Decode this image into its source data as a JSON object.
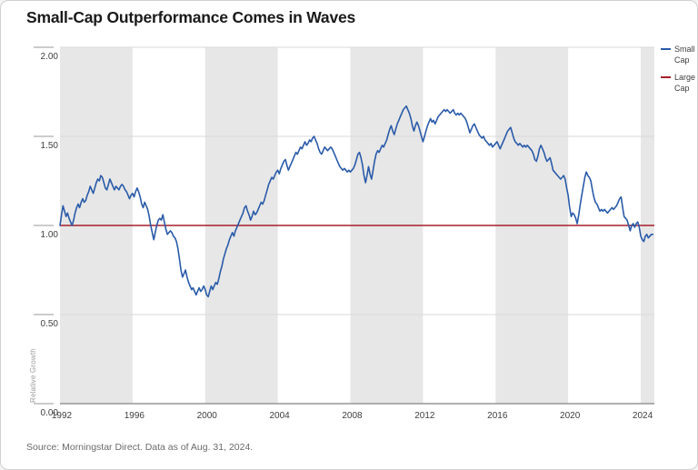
{
  "title": "Small-Cap Outperformance Comes in Waves",
  "source": "Source: Morningstar Direct. Data as of Aug. 31, 2024.",
  "ylabel": "Relative Growth",
  "legend": [
    {
      "label": "Small Cap",
      "color": "#2a5ba9"
    },
    {
      "label": "Large Cap",
      "color": "#a61e2b"
    }
  ],
  "colors": {
    "band": "#e7e7e7",
    "grid": "#d8d8d8",
    "axis": "#959595",
    "tick": "#999999",
    "tick_text": "#404040",
    "small_cap": "#2a5ba9",
    "large_cap": "#a61e2b"
  },
  "chart_data": {
    "type": "line",
    "title": "Small-Cap Outperformance Comes in Waves",
    "xlabel": "",
    "ylabel": "Relative Growth",
    "xlim": [
      1992,
      2024.75
    ],
    "ylim": [
      0,
      2
    ],
    "grid": "horizontal",
    "legend_position": "top-right",
    "yticks": [
      {
        "value": 0.0,
        "label": "0.00"
      },
      {
        "value": 0.5,
        "label": "0.50"
      },
      {
        "value": 1.0,
        "label": "1.00"
      },
      {
        "value": 1.5,
        "label": "1.50"
      },
      {
        "value": 2.0,
        "label": "2.00"
      }
    ],
    "xticks": [
      {
        "value": 1992,
        "label": "1992"
      },
      {
        "value": 1996,
        "label": "1996"
      },
      {
        "value": 2000,
        "label": "2000"
      },
      {
        "value": 2004,
        "label": "2004"
      },
      {
        "value": 2008,
        "label": "2008"
      },
      {
        "value": 2012,
        "label": "2012"
      },
      {
        "value": 2016,
        "label": "2016"
      },
      {
        "value": 2020,
        "label": "2020"
      },
      {
        "value": 2024,
        "label": "2024"
      }
    ],
    "shaded_bands_years": [
      [
        1992,
        1996
      ],
      [
        2000,
        2004
      ],
      [
        2008,
        2012
      ],
      [
        2016,
        2020
      ],
      [
        2024,
        2024.75
      ]
    ],
    "series": [
      {
        "name": "Small Cap",
        "color": "#2a5ba9",
        "x_start": 1992,
        "points_per_year": 12,
        "values": [
          1.0,
          1.06,
          1.11,
          1.08,
          1.05,
          1.07,
          1.04,
          1.02,
          1.0,
          1.03,
          1.07,
          1.1,
          1.12,
          1.1,
          1.13,
          1.15,
          1.13,
          1.14,
          1.17,
          1.19,
          1.22,
          1.2,
          1.18,
          1.21,
          1.24,
          1.26,
          1.25,
          1.28,
          1.27,
          1.24,
          1.21,
          1.2,
          1.23,
          1.26,
          1.24,
          1.22,
          1.2,
          1.22,
          1.21,
          1.2,
          1.22,
          1.23,
          1.22,
          1.2,
          1.19,
          1.17,
          1.15,
          1.17,
          1.18,
          1.16,
          1.19,
          1.21,
          1.19,
          1.16,
          1.12,
          1.1,
          1.13,
          1.11,
          1.09,
          1.05,
          1.0,
          0.96,
          0.92,
          0.96,
          1.0,
          1.03,
          1.04,
          1.03,
          1.06,
          1.02,
          0.98,
          0.95,
          0.96,
          0.97,
          0.96,
          0.94,
          0.93,
          0.91,
          0.87,
          0.81,
          0.75,
          0.71,
          0.73,
          0.75,
          0.71,
          0.68,
          0.66,
          0.64,
          0.65,
          0.63,
          0.61,
          0.63,
          0.65,
          0.63,
          0.64,
          0.66,
          0.64,
          0.61,
          0.6,
          0.63,
          0.66,
          0.64,
          0.66,
          0.68,
          0.67,
          0.7,
          0.74,
          0.77,
          0.81,
          0.84,
          0.87,
          0.89,
          0.92,
          0.94,
          0.96,
          0.94,
          0.97,
          0.99,
          1.01,
          1.03,
          1.05,
          1.07,
          1.1,
          1.11,
          1.08,
          1.06,
          1.03,
          1.05,
          1.08,
          1.06,
          1.07,
          1.09,
          1.11,
          1.13,
          1.12,
          1.14,
          1.17,
          1.2,
          1.23,
          1.25,
          1.27,
          1.26,
          1.28,
          1.3,
          1.31,
          1.29,
          1.32,
          1.34,
          1.36,
          1.37,
          1.34,
          1.31,
          1.33,
          1.35,
          1.37,
          1.39,
          1.41,
          1.4,
          1.42,
          1.44,
          1.43,
          1.45,
          1.47,
          1.45,
          1.46,
          1.48,
          1.47,
          1.49,
          1.5,
          1.48,
          1.46,
          1.43,
          1.41,
          1.4,
          1.42,
          1.44,
          1.43,
          1.42,
          1.43,
          1.44,
          1.43,
          1.41,
          1.39,
          1.37,
          1.35,
          1.33,
          1.32,
          1.31,
          1.32,
          1.31,
          1.3,
          1.31,
          1.3,
          1.31,
          1.32,
          1.34,
          1.37,
          1.4,
          1.41,
          1.38,
          1.34,
          1.28,
          1.24,
          1.28,
          1.33,
          1.29,
          1.26,
          1.31,
          1.36,
          1.4,
          1.42,
          1.41,
          1.43,
          1.45,
          1.44,
          1.46,
          1.48,
          1.51,
          1.54,
          1.56,
          1.53,
          1.51,
          1.54,
          1.57,
          1.59,
          1.61,
          1.63,
          1.65,
          1.66,
          1.67,
          1.65,
          1.63,
          1.6,
          1.56,
          1.53,
          1.56,
          1.58,
          1.56,
          1.53,
          1.5,
          1.47,
          1.5,
          1.53,
          1.56,
          1.58,
          1.6,
          1.58,
          1.59,
          1.57,
          1.59,
          1.61,
          1.62,
          1.63,
          1.64,
          1.65,
          1.64,
          1.65,
          1.64,
          1.63,
          1.64,
          1.65,
          1.63,
          1.62,
          1.63,
          1.62,
          1.63,
          1.62,
          1.61,
          1.6,
          1.58,
          1.55,
          1.52,
          1.54,
          1.56,
          1.57,
          1.55,
          1.53,
          1.51,
          1.5,
          1.49,
          1.5,
          1.48,
          1.47,
          1.46,
          1.45,
          1.46,
          1.44,
          1.45,
          1.46,
          1.47,
          1.45,
          1.43,
          1.45,
          1.47,
          1.49,
          1.51,
          1.53,
          1.54,
          1.55,
          1.52,
          1.49,
          1.47,
          1.46,
          1.45,
          1.46,
          1.45,
          1.44,
          1.45,
          1.44,
          1.45,
          1.44,
          1.43,
          1.42,
          1.4,
          1.37,
          1.36,
          1.39,
          1.43,
          1.45,
          1.43,
          1.41,
          1.38,
          1.36,
          1.37,
          1.38,
          1.35,
          1.31,
          1.3,
          1.29,
          1.28,
          1.27,
          1.26,
          1.27,
          1.28,
          1.26,
          1.21,
          1.17,
          1.1,
          1.05,
          1.07,
          1.06,
          1.04,
          1.01,
          1.06,
          1.12,
          1.17,
          1.22,
          1.27,
          1.3,
          1.28,
          1.27,
          1.25,
          1.2,
          1.16,
          1.13,
          1.12,
          1.1,
          1.08,
          1.09,
          1.08,
          1.09,
          1.08,
          1.07,
          1.08,
          1.09,
          1.1,
          1.09,
          1.1,
          1.11,
          1.13,
          1.15,
          1.16,
          1.1,
          1.05,
          1.04,
          1.03,
          1.0,
          0.97,
          1.0,
          1.01,
          0.99,
          1.01,
          1.02,
          0.99,
          0.94,
          0.92,
          0.91,
          0.94,
          0.95,
          0.93,
          0.94,
          0.95,
          0.95
        ]
      },
      {
        "name": "Large Cap",
        "color": "#a61e2b",
        "constant": 1.0
      }
    ]
  }
}
